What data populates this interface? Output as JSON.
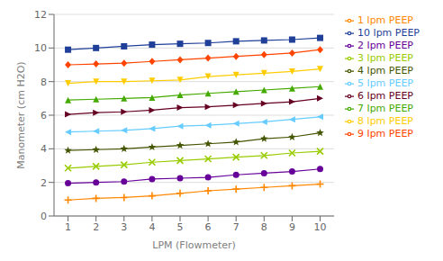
{
  "chart_data": {
    "type": "line",
    "xlabel": "LPM (Flowmeter)",
    "ylabel": "Manometer (cm H2O)",
    "x": [
      1,
      2,
      3,
      4,
      5,
      6,
      7,
      8,
      9,
      10
    ],
    "series": [
      {
        "name": "10 lpm PEEP",
        "color": "#1F3F99",
        "marker": "square",
        "values": [
          9.9,
          10.0,
          10.1,
          10.2,
          10.25,
          10.3,
          10.4,
          10.45,
          10.5,
          10.6
        ]
      },
      {
        "name": "9 lpm PEEP",
        "color": "#FF4400",
        "marker": "diamond",
        "values": [
          9.0,
          9.05,
          9.1,
          9.2,
          9.3,
          9.4,
          9.5,
          9.6,
          9.7,
          9.9
        ]
      },
      {
        "name": "8 lpm PEEP",
        "color": "#FFCC00",
        "marker": "triangle-down",
        "values": [
          7.9,
          8.0,
          8.0,
          8.05,
          8.1,
          8.3,
          8.4,
          8.5,
          8.6,
          8.75
        ]
      },
      {
        "name": "7 lpm PEEP",
        "color": "#44AA00",
        "marker": "triangle-up",
        "values": [
          6.9,
          6.95,
          7.0,
          7.05,
          7.2,
          7.3,
          7.4,
          7.5,
          7.6,
          7.7
        ]
      },
      {
        "name": "6 lpm PEEP",
        "color": "#660022",
        "marker": "triangle-right",
        "values": [
          6.05,
          6.15,
          6.2,
          6.3,
          6.45,
          6.5,
          6.6,
          6.7,
          6.8,
          7.0
        ]
      },
      {
        "name": "5 lpm PEEP",
        "color": "#66CCFF",
        "marker": "triangle-left",
        "values": [
          5.0,
          5.05,
          5.1,
          5.2,
          5.35,
          5.4,
          5.5,
          5.6,
          5.75,
          5.9
        ]
      },
      {
        "name": "4 lpm PEEP",
        "color": "#445500",
        "marker": "star",
        "values": [
          3.9,
          3.95,
          4.0,
          4.1,
          4.2,
          4.3,
          4.4,
          4.6,
          4.7,
          4.95
        ]
      },
      {
        "name": "3 lpm PEEP",
        "color": "#99CC00",
        "marker": "x",
        "values": [
          2.85,
          2.95,
          3.05,
          3.2,
          3.3,
          3.4,
          3.5,
          3.6,
          3.75,
          3.85
        ]
      },
      {
        "name": "2 lpm PEEP",
        "color": "#660099",
        "marker": "circle",
        "values": [
          1.95,
          2.0,
          2.05,
          2.2,
          2.25,
          2.3,
          2.45,
          2.55,
          2.65,
          2.8
        ]
      },
      {
        "name": "1 lpm PEEP",
        "color": "#FF8800",
        "marker": "plus",
        "values": [
          0.95,
          1.05,
          1.1,
          1.2,
          1.35,
          1.5,
          1.6,
          1.7,
          1.8,
          1.9
        ]
      }
    ],
    "xlim": [
      0.5,
      10.5
    ],
    "ylim": [
      0,
      12
    ],
    "xticks": [
      1,
      2,
      3,
      4,
      5,
      6,
      7,
      8,
      9,
      10
    ],
    "yticks": [
      0,
      2,
      4,
      6,
      8,
      10,
      12
    ],
    "grid": "y",
    "legend": "upper right"
  }
}
